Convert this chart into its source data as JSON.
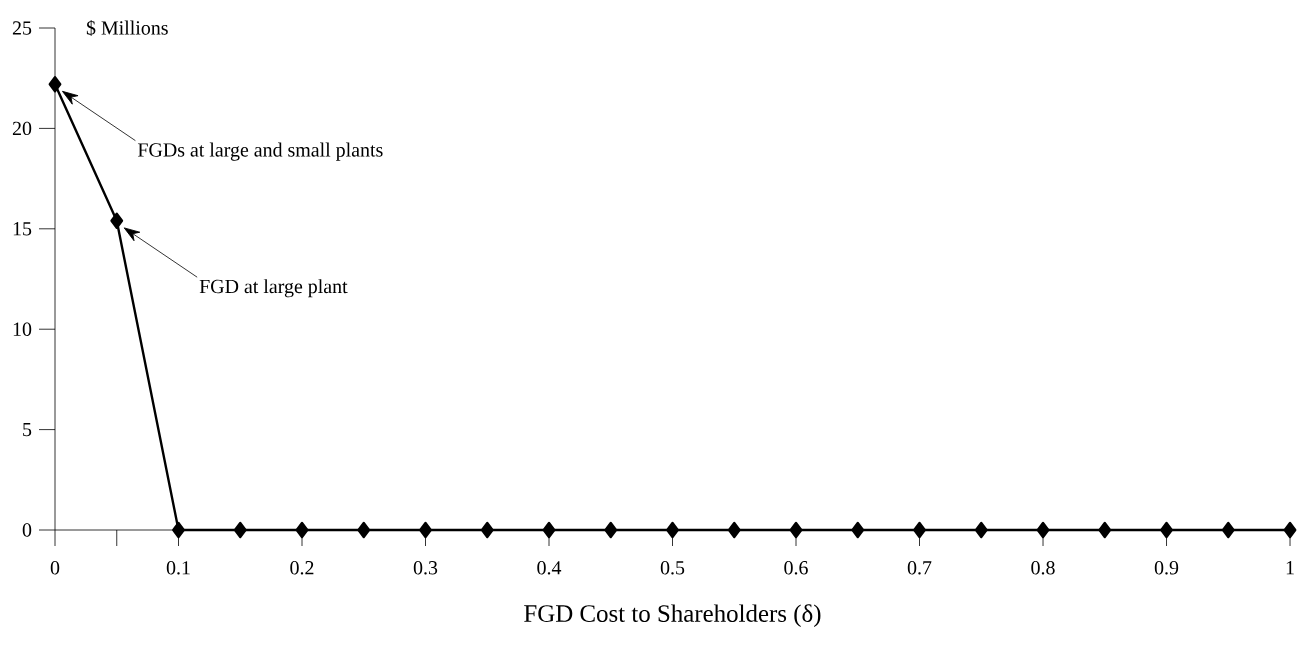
{
  "chart_data": {
    "type": "line",
    "ylabel": "$ Millions",
    "xlabel": "FGD Cost to Shareholders (δ)",
    "x": [
      0,
      0.05,
      0.1,
      0.15,
      0.2,
      0.25,
      0.3,
      0.35,
      0.4,
      0.45,
      0.5,
      0.55,
      0.6,
      0.65,
      0.7,
      0.75,
      0.8,
      0.85,
      0.9,
      0.95,
      1
    ],
    "values": [
      22.2,
      15.4,
      0,
      0,
      0,
      0,
      0,
      0,
      0,
      0,
      0,
      0,
      0,
      0,
      0,
      0,
      0,
      0,
      0,
      0,
      0
    ],
    "color": "#000000",
    "marker": "diamond",
    "line_style": "solid",
    "xlim": [
      0,
      1
    ],
    "ylim": [
      0,
      25
    ],
    "xticks": [
      0,
      {
        "value": 0.05,
        "label": null
      },
      0.1,
      0.2,
      0.3,
      0.4,
      0.5,
      0.6,
      0.7,
      0.8,
      0.9,
      1
    ],
    "yticks": [
      0,
      5,
      10,
      15,
      20,
      25
    ],
    "annotations": [
      "FGDs at large and small plants",
      "FGD at large plant"
    ]
  }
}
